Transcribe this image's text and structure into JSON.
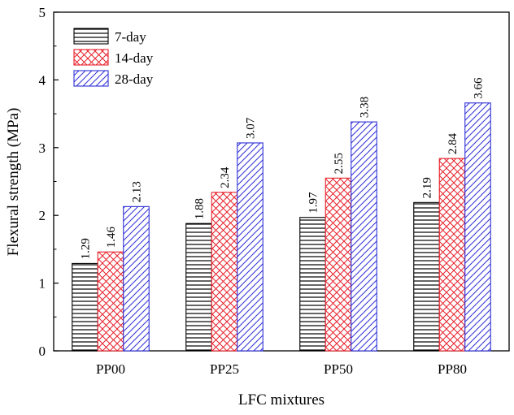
{
  "chart_data": {
    "type": "bar",
    "xlabel": "LFC mixtures",
    "ylabel": "Flexural strength (MPa)",
    "ylim": [
      0,
      5
    ],
    "yticks": [
      "0",
      "1",
      "2",
      "3",
      "4",
      "5"
    ],
    "categories": [
      "PP00",
      "PP25",
      "PP50",
      "PP80"
    ],
    "series": [
      {
        "name": "7-day",
        "values": [
          1.29,
          1.88,
          1.97,
          2.19
        ],
        "labels": [
          "1.29",
          "1.88",
          "1.97",
          "2.19"
        ],
        "color": "#000000",
        "pattern": "horizontal-lines"
      },
      {
        "name": "14-day",
        "values": [
          1.46,
          2.34,
          2.55,
          2.84
        ],
        "labels": [
          "1.46",
          "2.34",
          "2.55",
          "2.84"
        ],
        "color": "#e8202a",
        "pattern": "crosshatch"
      },
      {
        "name": "28-day",
        "values": [
          2.13,
          3.07,
          3.38,
          3.66
        ],
        "labels": [
          "2.13",
          "3.07",
          "3.38",
          "3.66"
        ],
        "color": "#2f2fd8",
        "pattern": "diagonal-lines"
      }
    ],
    "legend_position": "top-left",
    "grid": false
  }
}
